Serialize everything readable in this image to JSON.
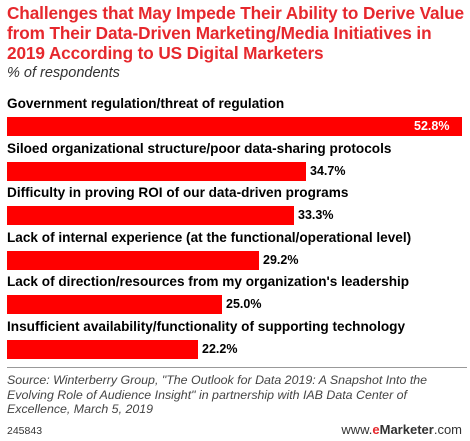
{
  "chart_data": {
    "type": "bar",
    "orientation": "horizontal",
    "title": "Challenges that May Impede Their Ability to Derive Value from Their Data-Driven Marketing/Media Initiatives in 2019 According to US Digital Marketers",
    "subtitle": "% of respondents",
    "categories": [
      "Government regulation/threat of regulation",
      "Siloed organizational structure/poor data-sharing protocols",
      "Difficulty in proving ROI of our data-driven programs",
      "Lack of internal experience (at the functional/operational level)",
      "Lack of direction/resources from my organization's leadership",
      "Insufficient availability/functionality of supporting technology"
    ],
    "values": [
      52.8,
      34.7,
      33.3,
      29.2,
      25.0,
      22.2
    ],
    "value_labels": [
      "52.8%",
      "34.7%",
      "33.3%",
      "29.2%",
      "25.0%",
      "22.2%"
    ],
    "xlim": [
      0,
      52.8
    ],
    "bar_color": "#ff0000",
    "grid": false,
    "legend": "none"
  },
  "footer": {
    "source": "Source: Winterberry Group, \"The Outlook for Data 2019: A Snapshot Into the Evolving Role of Audience Insight\" in partnership with IAB Data Center of Excellence, March 5, 2019",
    "chart_id": "245843",
    "brand_prefix": "www.",
    "brand_e": "e",
    "brand_rest": "Marketer",
    "brand_suffix": ".com"
  },
  "colors": {
    "title": "#e6282d",
    "bar": "#ff0000"
  }
}
